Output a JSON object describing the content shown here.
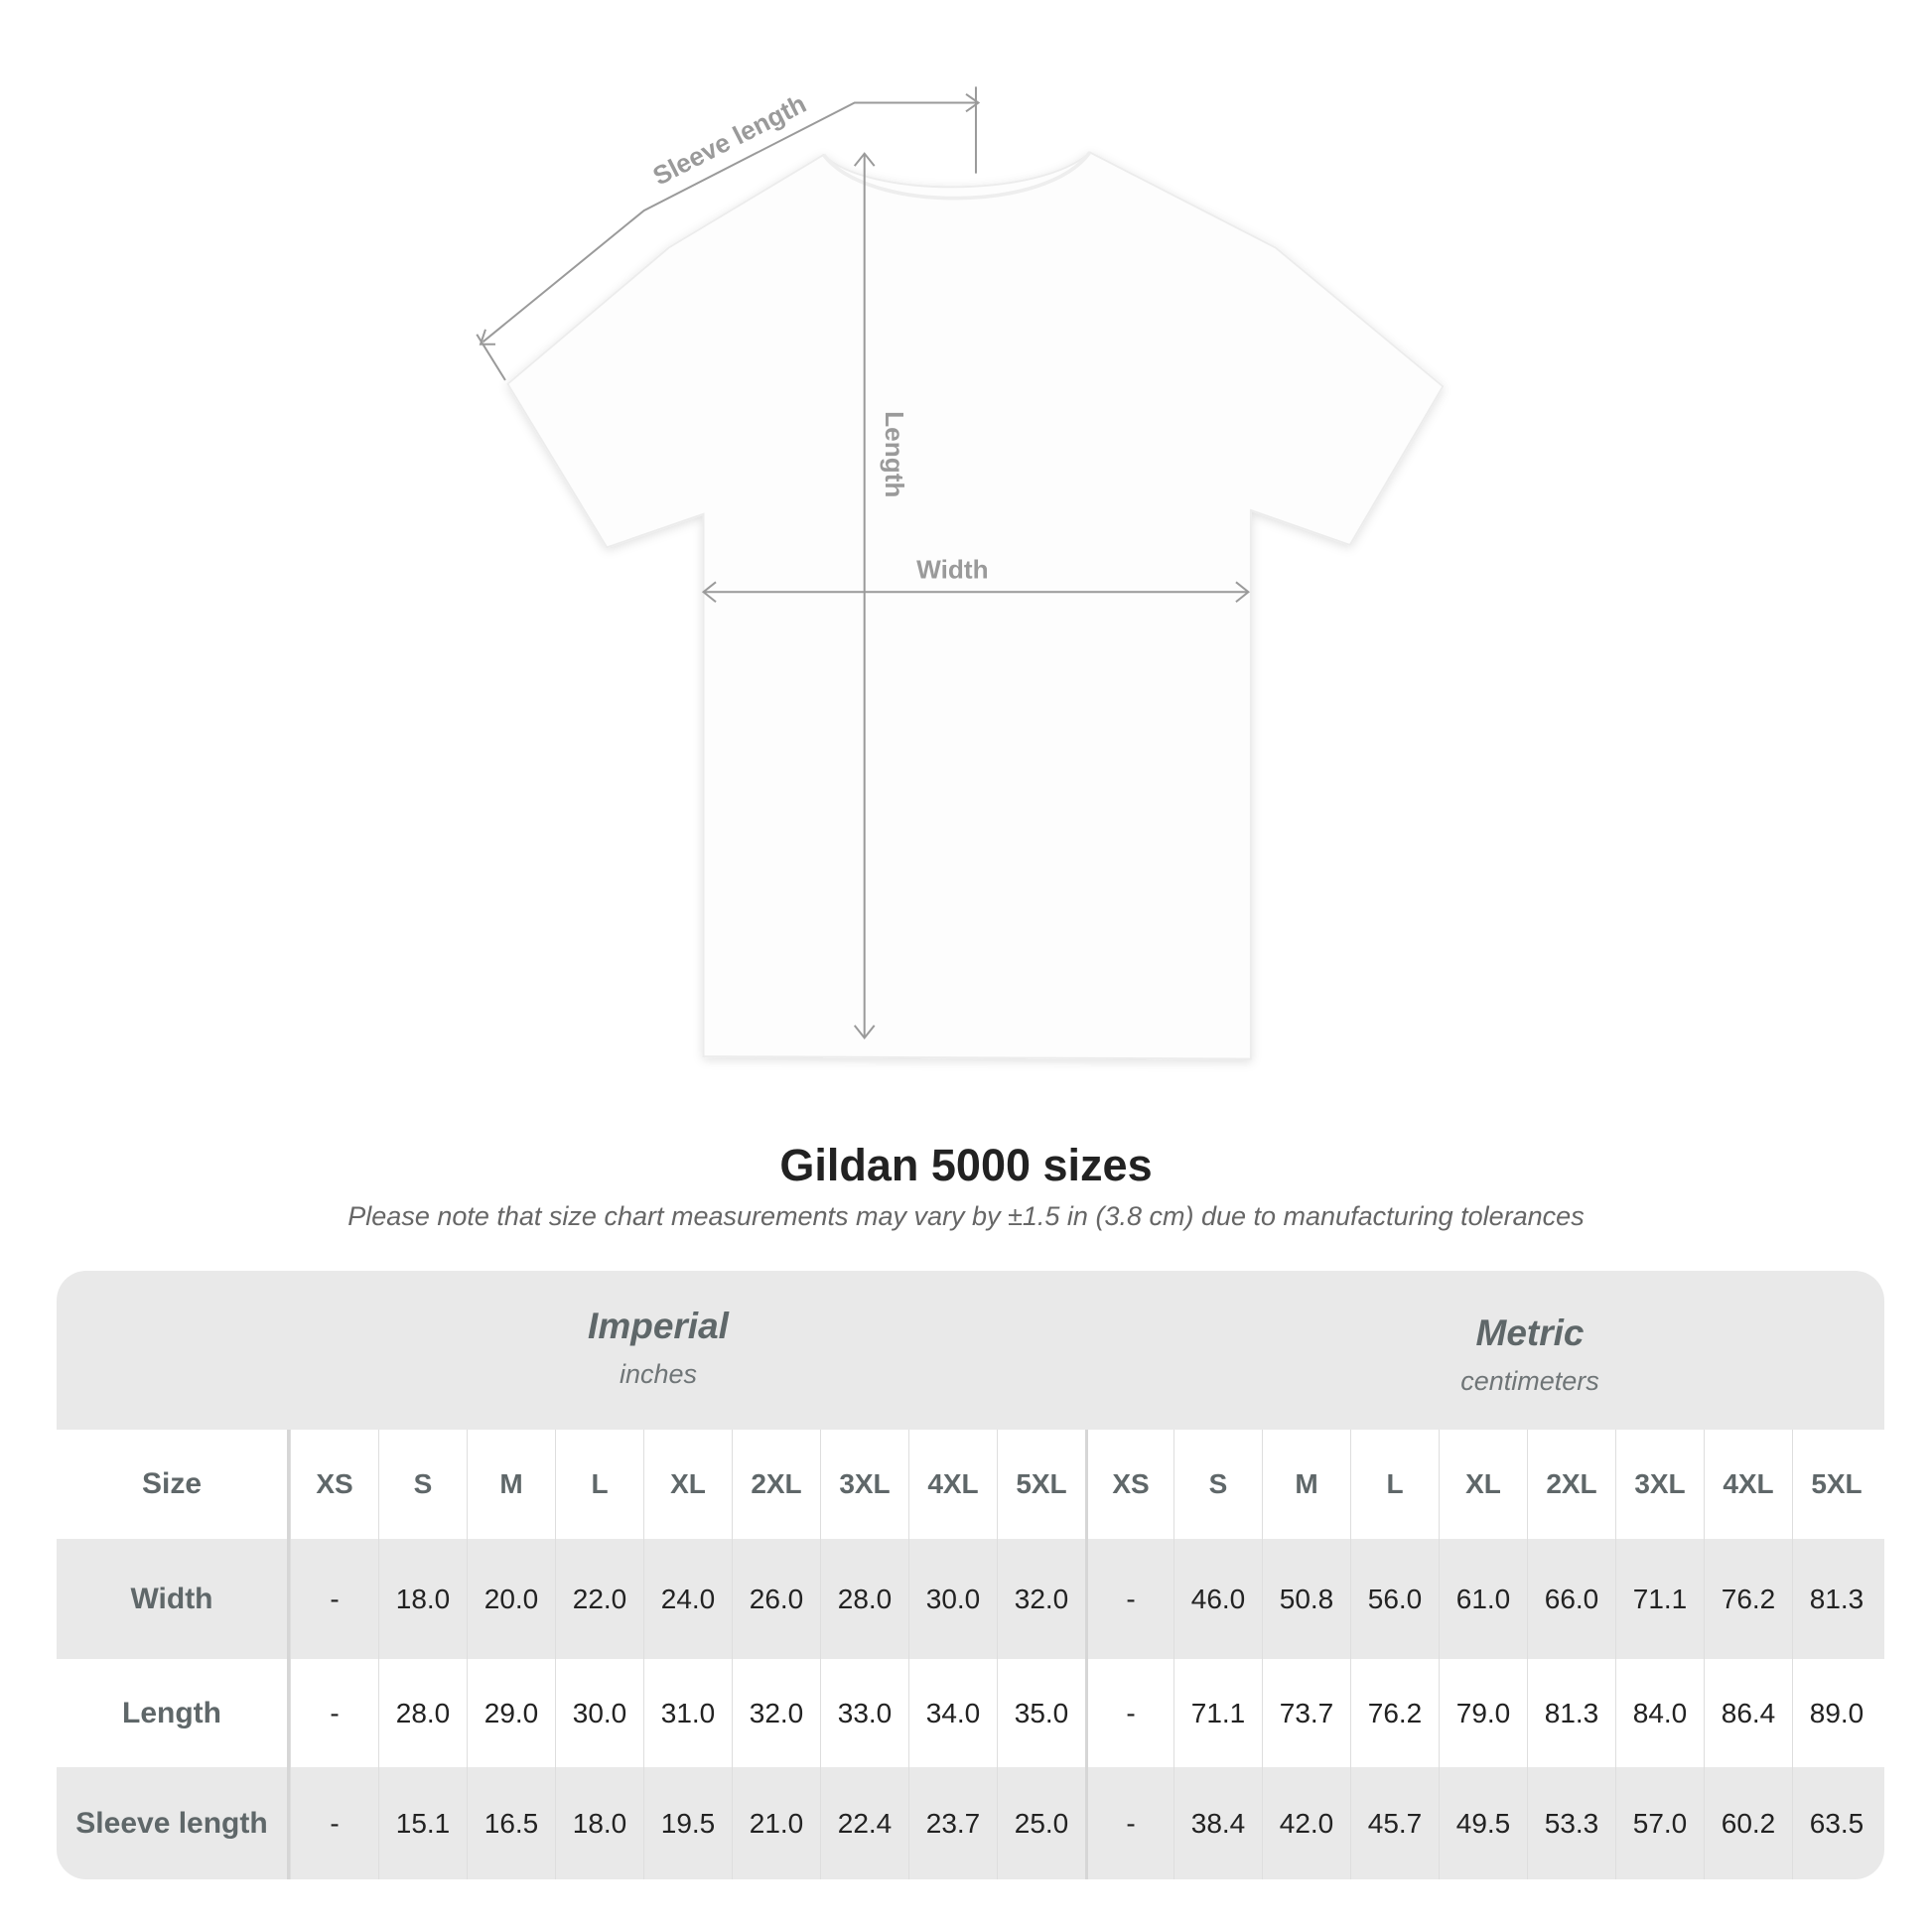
{
  "diagram": {
    "labels": {
      "sleeve": "Sleeve length",
      "length": "Length",
      "width": "Width"
    }
  },
  "title": "Gildan 5000 sizes",
  "note": "Please note that size chart measurements may vary by ±1.5 in (3.8 cm) due to manufacturing tolerances",
  "table": {
    "imperial": {
      "name": "Imperial",
      "unit": "inches"
    },
    "metric": {
      "name": "Metric",
      "unit": "centimeters"
    },
    "size_label": "Size",
    "sizes": [
      "XS",
      "S",
      "M",
      "L",
      "XL",
      "2XL",
      "3XL",
      "4XL",
      "5XL"
    ],
    "rows": [
      {
        "label": "Width",
        "imperial": [
          "-",
          "18.0",
          "20.0",
          "22.0",
          "24.0",
          "26.0",
          "28.0",
          "30.0",
          "32.0"
        ],
        "metric": [
          "-",
          "46.0",
          "50.8",
          "56.0",
          "61.0",
          "66.0",
          "71.1",
          "76.2",
          "81.3"
        ]
      },
      {
        "label": "Length",
        "imperial": [
          "-",
          "28.0",
          "29.0",
          "30.0",
          "31.0",
          "32.0",
          "33.0",
          "34.0",
          "35.0"
        ],
        "metric": [
          "-",
          "71.1",
          "73.7",
          "76.2",
          "79.0",
          "81.3",
          "84.0",
          "86.4",
          "89.0"
        ]
      },
      {
        "label": "Sleeve length",
        "imperial": [
          "-",
          "15.1",
          "16.5",
          "18.0",
          "19.5",
          "21.0",
          "22.4",
          "23.7",
          "25.0"
        ],
        "metric": [
          "-",
          "38.4",
          "42.0",
          "45.7",
          "49.5",
          "53.3",
          "57.0",
          "60.2",
          "63.5"
        ]
      }
    ]
  },
  "colors": {
    "header_text": "#5f6769",
    "band": "#e9e9e9",
    "value_text": "#222222",
    "measure_line": "#9a9a9a"
  }
}
